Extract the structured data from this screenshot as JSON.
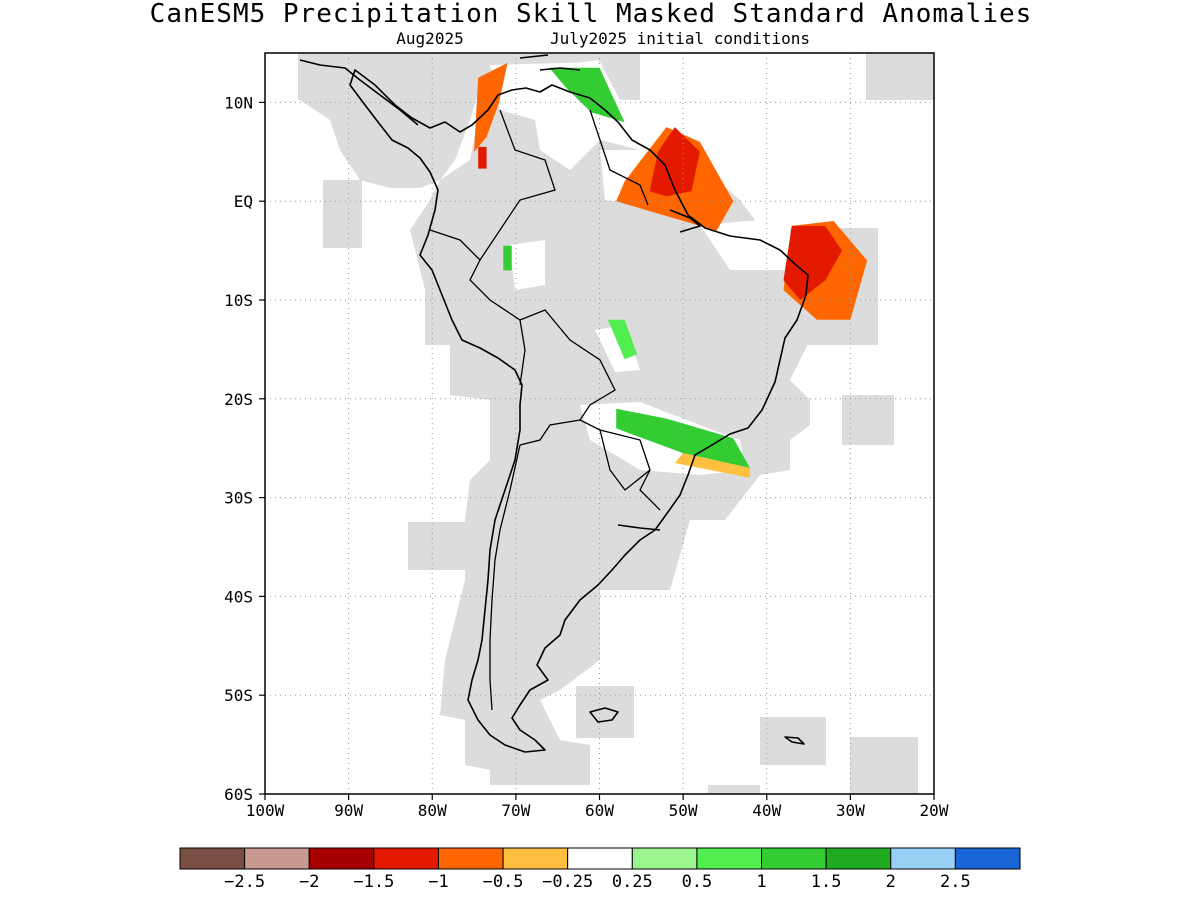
{
  "title": "CanESM5 Precipitation Skill Masked Standard Anomalies",
  "subtitle_left": "Aug2025",
  "subtitle_right": "July2025 initial conditions",
  "map": {
    "lon_range": [
      -100,
      -20
    ],
    "lat_range": [
      -60,
      15
    ],
    "lon_ticks": [
      {
        "value": -100,
        "label": "100W"
      },
      {
        "value": -90,
        "label": "90W"
      },
      {
        "value": -80,
        "label": "80W"
      },
      {
        "value": -70,
        "label": "70W"
      },
      {
        "value": -60,
        "label": "60W"
      },
      {
        "value": -50,
        "label": "50W"
      },
      {
        "value": -40,
        "label": "40W"
      },
      {
        "value": -30,
        "label": "30W"
      },
      {
        "value": -20,
        "label": "20W"
      }
    ],
    "lat_ticks": [
      {
        "value": 10,
        "label": "10N"
      },
      {
        "value": 0,
        "label": "EQ"
      },
      {
        "value": -10,
        "label": "10S"
      },
      {
        "value": -20,
        "label": "20S"
      },
      {
        "value": -30,
        "label": "30S"
      },
      {
        "value": -40,
        "label": "40S"
      },
      {
        "value": -50,
        "label": "50S"
      },
      {
        "value": -60,
        "label": "60S"
      }
    ],
    "mask_color": "#dcdcdc",
    "anomaly_regions": [
      {
        "name": "caribbean-coast-colombia",
        "value": -1.0,
        "lonlat": [
          [
            -74.5,
            12.5
          ],
          [
            -71,
            14
          ],
          [
            -72,
            10
          ],
          [
            -73.5,
            6.5
          ],
          [
            -75,
            5
          ]
        ]
      },
      {
        "name": "colombia-core",
        "value": -1.5,
        "lonlat": [
          [
            -74.5,
            5.5
          ],
          [
            -73.5,
            5.5
          ],
          [
            -73.5,
            3.3
          ],
          [
            -74.5,
            3.3
          ]
        ]
      },
      {
        "name": "guianas-coast",
        "value": -1.0,
        "lonlat": [
          [
            -57,
            2
          ],
          [
            -52,
            7.5
          ],
          [
            -48,
            6
          ],
          [
            -44,
            0
          ],
          [
            -46,
            -3
          ],
          [
            -54,
            -1
          ],
          [
            -58,
            0
          ]
        ]
      },
      {
        "name": "amapa-core",
        "value": -1.5,
        "lonlat": [
          [
            -53,
            5
          ],
          [
            -51,
            7.5
          ],
          [
            -48,
            5
          ],
          [
            -49,
            1
          ],
          [
            -52,
            0.5
          ],
          [
            -54,
            1
          ]
        ]
      },
      {
        "name": "ne-brazil-atlantic",
        "value": -1.0,
        "lonlat": [
          [
            -37,
            -2.5
          ],
          [
            -32,
            -2
          ],
          [
            -28,
            -6
          ],
          [
            -30,
            -12
          ],
          [
            -34,
            -12
          ],
          [
            -38,
            -9
          ]
        ]
      },
      {
        "name": "ne-brazil-core",
        "value": -1.5,
        "lonlat": [
          [
            -37,
            -2.5
          ],
          [
            -33,
            -2.5
          ],
          [
            -31,
            -5
          ],
          [
            -33,
            -8
          ],
          [
            -36,
            -10
          ],
          [
            -38,
            -8
          ]
        ]
      },
      {
        "name": "venezuela-coast",
        "value": 1.0,
        "lonlat": [
          [
            -66,
            13.5
          ],
          [
            -60,
            13.5
          ],
          [
            -57,
            8
          ],
          [
            -61,
            9
          ],
          [
            -64,
            11.5
          ]
        ]
      },
      {
        "name": "amazon-west",
        "value": 1.0,
        "lonlat": [
          [
            -71.5,
            -4.5
          ],
          [
            -70.5,
            -4.5
          ],
          [
            -70.5,
            -7
          ],
          [
            -71.5,
            -7
          ]
        ]
      },
      {
        "name": "mato-grosso",
        "value": 0.5,
        "lonlat": [
          [
            -59,
            -12
          ],
          [
            -57,
            -12
          ],
          [
            -55.5,
            -15.5
          ],
          [
            -57,
            -16
          ]
        ]
      },
      {
        "name": "south-brazil-band",
        "value": 1.0,
        "lonlat": [
          [
            -58,
            -21
          ],
          [
            -52,
            -22
          ],
          [
            -44,
            -24
          ],
          [
            -42,
            -27
          ],
          [
            -50,
            -25.5
          ],
          [
            -58,
            -23
          ]
        ]
      },
      {
        "name": "south-brazil-dry",
        "value": -0.5,
        "lonlat": [
          [
            -50,
            -25.5
          ],
          [
            -42,
            -27
          ],
          [
            -42,
            -28
          ],
          [
            -51,
            -26.5
          ]
        ]
      }
    ]
  },
  "colorbar": {
    "colors": [
      "#7a4f43",
      "#c99a90",
      "#a70000",
      "#e31a00",
      "#ff6600",
      "#ffbf3f",
      "#ffffff",
      "#9af58f",
      "#52ee50",
      "#33cc33",
      "#1faa1f",
      "#97cff5",
      "#1765d6"
    ],
    "labels": [
      "−2.5",
      "−2",
      "−1.5",
      "−1",
      "−0.5",
      "−0.25",
      "0.25",
      "0.5",
      "1",
      "1.5",
      "2",
      "2.5"
    ],
    "bounds": [
      -2.5,
      -2,
      -1.5,
      -1,
      -0.5,
      -0.25,
      0.25,
      0.5,
      1,
      1.5,
      2,
      2.5
    ]
  }
}
